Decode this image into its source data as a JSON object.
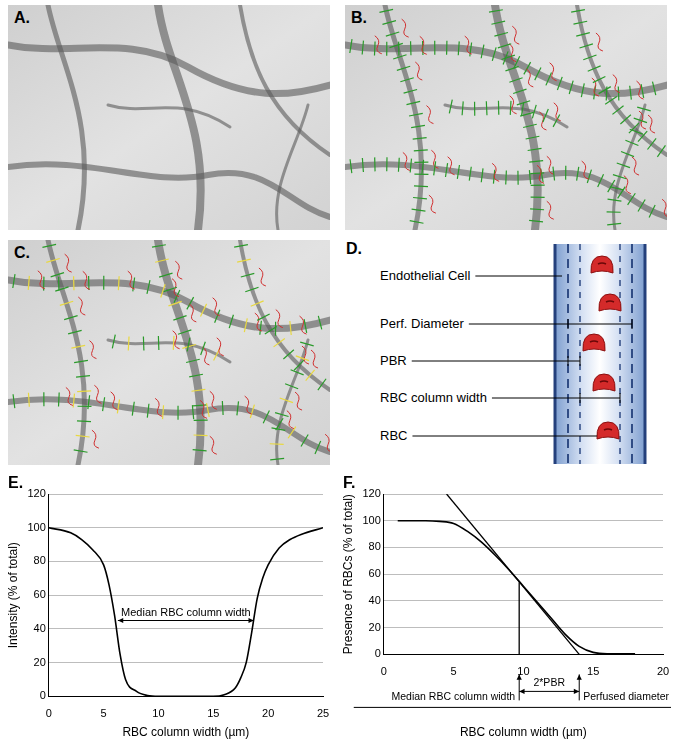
{
  "image_panels": [
    {
      "label": "A."
    },
    {
      "label": "B."
    },
    {
      "label": "C."
    }
  ],
  "diagram": {
    "label": "D.",
    "items": [
      "Endothelial Cell",
      "Perf. Diameter",
      "PBR",
      "RBC column width",
      "RBC"
    ]
  },
  "chart_data": [
    {
      "panel_label": "E.",
      "type": "line",
      "x_label": "RBC column width (µm)",
      "y_label": "Intensity (% of total)",
      "xlim": [
        0,
        25
      ],
      "xticks": [
        0,
        5,
        10,
        15,
        20,
        25
      ],
      "ylim": [
        0,
        120
      ],
      "yticks": [
        0,
        20,
        40,
        60,
        80,
        100,
        120
      ],
      "grid": true,
      "color": "#000000",
      "marker": "none",
      "x": [
        0,
        2,
        3,
        4,
        5,
        5.5,
        6,
        6.5,
        7,
        8,
        9,
        10,
        15,
        16,
        17,
        17.5,
        18,
        18.5,
        19,
        19.5,
        20,
        21,
        22,
        23,
        25
      ],
      "values": [
        100,
        97,
        93,
        87,
        78,
        66,
        48,
        25,
        10,
        3,
        0.5,
        0,
        0,
        1,
        5,
        11,
        20,
        38,
        58,
        70,
        78,
        88,
        93,
        96,
        100
      ],
      "annotations": [
        {
          "text": "Median RBC column width",
          "x": [
            6.3,
            18.7
          ],
          "y": 45
        }
      ]
    },
    {
      "panel_label": "F.",
      "type": "line",
      "x_label": "RBC column width (µm)",
      "y_label": "Presence of RBCs (% of total)",
      "xlim": [
        0,
        20
      ],
      "xticks": [
        0,
        5,
        10,
        15,
        20
      ],
      "ylim": [
        0,
        120
      ],
      "yticks": [
        0,
        20,
        40,
        60,
        80,
        100,
        120
      ],
      "grid": true,
      "color": "#000000",
      "marker": "none",
      "x": [
        1,
        2,
        3,
        4,
        5,
        6,
        7,
        8,
        9,
        10,
        11,
        12,
        13,
        14,
        15,
        16,
        17,
        18
      ],
      "values": [
        100,
        100,
        100,
        99.5,
        98,
        92,
        84,
        74,
        63,
        51,
        39,
        27,
        15,
        6,
        1.5,
        0.5,
        0.5,
        0.5
      ],
      "tangent": {
        "x": [
          4.5,
          14
        ],
        "y": [
          120,
          0
        ]
      },
      "vertical_line": {
        "x": [
          9.7,
          9.7
        ],
        "y": [
          0,
          54
        ]
      },
      "annotations": [
        {
          "text": "Median RBC column width",
          "x": 9.7
        },
        {
          "text": "2*PBR",
          "x": [
            9.7,
            14
          ]
        },
        {
          "text": "Perfused diameter",
          "x": 14
        }
      ]
    }
  ]
}
